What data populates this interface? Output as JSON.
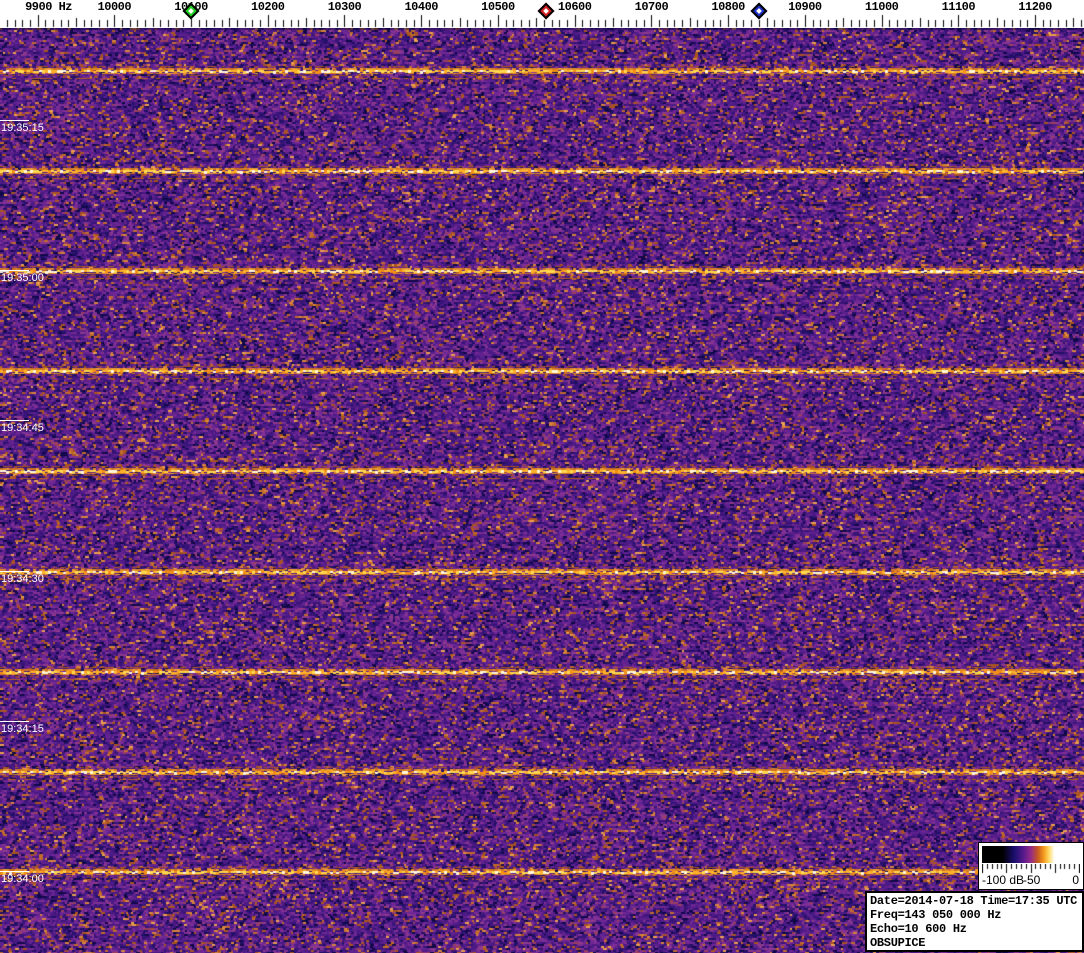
{
  "freq_ruler": {
    "unit": "Hz",
    "tick_labels": [
      "9900 Hz",
      "10000",
      "10100",
      "10200",
      "10300",
      "10400",
      "10500",
      "10600",
      "10700",
      "10800",
      "10900",
      "11000",
      "11100",
      "11200"
    ],
    "tick_start_hz": 9900,
    "tick_step_hz": 100,
    "minor_tick_step_hz": 10,
    "markers": [
      {
        "name": "green",
        "freq_hz": 10100,
        "fill": "#1ed41e"
      },
      {
        "name": "red",
        "freq_hz": 10562,
        "fill": "#d41e1e"
      },
      {
        "name": "blue",
        "freq_hz": 10840,
        "fill": "#1e32c8"
      }
    ]
  },
  "time_axis": {
    "labels": [
      "19:35:15",
      "19:35:00",
      "19:34:45",
      "19:34:30",
      "19:34:15",
      "19:34:00"
    ],
    "step_seconds": 15,
    "color": "#ffffff"
  },
  "waterfall": {
    "echo_line_times": [
      "19:35:20",
      "19:35:10",
      "19:35:00",
      "19:34:50",
      "19:34:40",
      "19:34:30",
      "19:34:20",
      "19:34:10",
      "19:34:00"
    ],
    "noise_palette": [
      "#100848",
      "#221066",
      "#381478",
      "#4c1a84",
      "#5e218e",
      "#702794",
      "#813094",
      "#8f3a8a",
      "#9b3f5e",
      "#aa5520",
      "#c46c2c",
      "#d8853c",
      "#eca14e"
    ],
    "line_core_colors": [
      "#fff8dc",
      "#ffd94e",
      "#ffb228",
      "#f79012"
    ],
    "line_fringe_colors": [
      "#e08a28",
      "#cc7020",
      "#f0a030",
      "#d67a22"
    ]
  },
  "legend": {
    "db_labels": [
      "-100 dB",
      "-50",
      "0"
    ]
  },
  "info_box": {
    "lines": [
      "Date=2014-07-18 Time=17:35 UTC",
      "Freq=143 050 000 Hz",
      "Echo=10 600 Hz",
      "OBSUPICE"
    ]
  },
  "chart_data": {
    "type": "heatmap",
    "title": "",
    "xlabel": "Hz",
    "ylabel": "",
    "x_ticks_hz": [
      9900,
      10000,
      10100,
      10200,
      10300,
      10400,
      10500,
      10600,
      10700,
      10800,
      10900,
      11000,
      11100,
      11200
    ],
    "x_range_hz": [
      9851,
      11264
    ],
    "y_ticks_time": [
      "19:35:15",
      "19:35:00",
      "19:34:45",
      "19:34:30",
      "19:34:15",
      "19:34:00"
    ],
    "time_span_seconds": 92,
    "orientation": "waterfall, time vertical, newest rows at top",
    "colorbar": {
      "labels": [
        "-100 dB",
        "-50",
        "0"
      ],
      "range_db": [
        -100,
        0
      ],
      "gradient": [
        "#000000",
        "#1a0e6e",
        "#5c1b8e",
        "#962c86",
        "#c85a20",
        "#f49a1c",
        "#ffd75e",
        "#ffffff"
      ]
    },
    "background_noise": "uniform purple/orange speckle noise, no meteor echo blobs visible",
    "horizontal_lines": {
      "period_seconds": 10,
      "times": [
        "19:35:20",
        "19:35:10",
        "19:35:00",
        "19:34:50",
        "19:34:40",
        "19:34:30",
        "19:34:20",
        "19:34:10",
        "19:34:00"
      ],
      "description": "bright broadband yellow-white lines across all frequencies every 10 s"
    },
    "frequency_markers": [
      {
        "color": "green",
        "freq_hz": 10100
      },
      {
        "color": "red",
        "freq_hz": 10562
      },
      {
        "color": "blue",
        "freq_hz": 10840
      }
    ]
  }
}
